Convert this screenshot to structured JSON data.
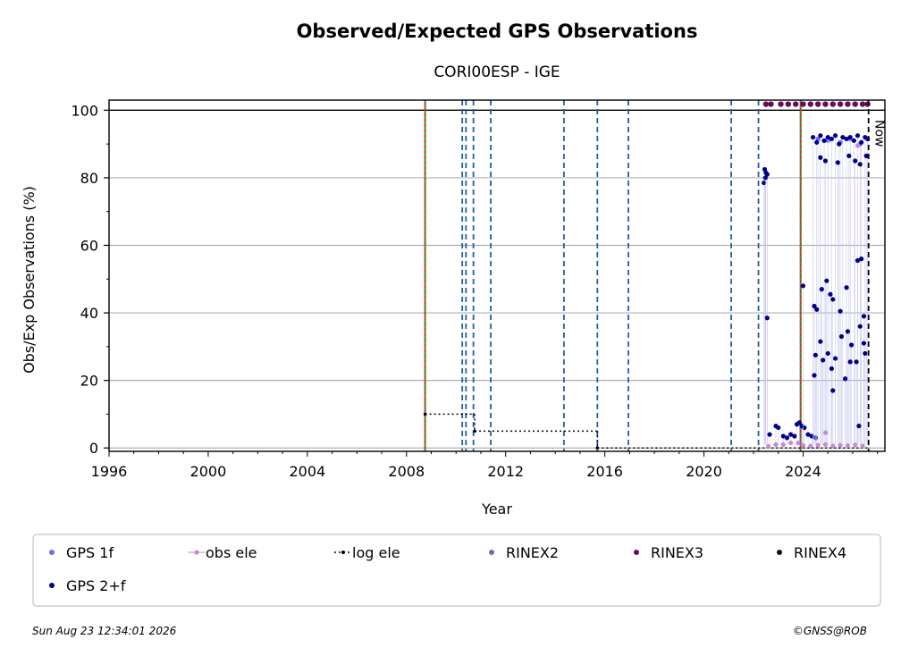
{
  "chart_data": {
    "type": "scatter",
    "title": "Observed/Expected GPS Observations",
    "subtitle": "CORI00ESP - IGE",
    "xlabel": "Year",
    "ylabel": "Obs/Exp Observations (%)",
    "xlim": [
      1996,
      2027.3
    ],
    "ylim": [
      -1,
      103
    ],
    "x_ticks": [
      "1996",
      "2000",
      "2004",
      "2008",
      "2012",
      "2016",
      "2020",
      "2024"
    ],
    "y_ticks": [
      "0",
      "20",
      "40",
      "60",
      "80",
      "100"
    ],
    "grid": "horizontal",
    "reference_line_y": 100,
    "now_label": "Now",
    "now_x": 2026.64,
    "red_green_lines_x": [
      2008.75,
      2023.9
    ],
    "blue_dashed_lines_x": [
      2010.25,
      2010.4,
      2010.7,
      2011.4,
      2014.35,
      2015.7,
      2016.95,
      2021.1,
      2022.2
    ],
    "log_ele_steps": [
      {
        "x0": 2008.75,
        "x1": 2010.75,
        "y": 10
      },
      {
        "x0": 2010.75,
        "x1": 2015.7,
        "y": 5
      },
      {
        "x0": 2015.7,
        "x1": 2026.64,
        "y": 0
      }
    ],
    "series": [
      {
        "name": "GPS 1f",
        "color": "#6b6bff",
        "points": [
          [
            2024.6,
            91.5
          ],
          [
            2025.0,
            91.0
          ],
          [
            2025.5,
            90.5
          ],
          [
            2025.9,
            91.5
          ],
          [
            2026.3,
            90.0
          ]
        ]
      },
      {
        "name": "GPS 2+f",
        "color": "#00008b",
        "points": [
          [
            2022.45,
            82.5
          ],
          [
            2022.5,
            81.5
          ],
          [
            2022.55,
            81.0
          ],
          [
            2022.42,
            78.5
          ],
          [
            2022.48,
            80.0
          ],
          [
            2022.55,
            38.5
          ],
          [
            2022.65,
            4.0
          ],
          [
            2022.9,
            6.5
          ],
          [
            2023.0,
            6.0
          ],
          [
            2023.2,
            3.5
          ],
          [
            2023.35,
            3.0
          ],
          [
            2023.5,
            4.0
          ],
          [
            2023.65,
            3.5
          ],
          [
            2023.75,
            7.0
          ],
          [
            2023.85,
            7.5
          ],
          [
            2023.95,
            6.5
          ],
          [
            2024.05,
            6.0
          ],
          [
            2024.0,
            48.0
          ],
          [
            2024.2,
            4.0
          ],
          [
            2024.35,
            3.5
          ],
          [
            2024.5,
            3.0
          ],
          [
            2024.4,
            92.0
          ],
          [
            2024.55,
            90.5
          ],
          [
            2024.7,
            92.5
          ],
          [
            2024.85,
            91.0
          ],
          [
            2025.0,
            92.0
          ],
          [
            2025.15,
            91.5
          ],
          [
            2025.3,
            92.5
          ],
          [
            2025.45,
            90.0
          ],
          [
            2025.6,
            92.0
          ],
          [
            2025.75,
            91.5
          ],
          [
            2025.9,
            92.0
          ],
          [
            2026.05,
            91.0
          ],
          [
            2026.2,
            92.5
          ],
          [
            2026.35,
            90.5
          ],
          [
            2026.5,
            92.0
          ],
          [
            2026.6,
            91.5
          ],
          [
            2024.7,
            86.0
          ],
          [
            2024.9,
            85.0
          ],
          [
            2025.4,
            84.5
          ],
          [
            2025.85,
            86.5
          ],
          [
            2026.1,
            85.0
          ],
          [
            2026.3,
            84.0
          ],
          [
            2026.55,
            86.5
          ],
          [
            2024.45,
            42.0
          ],
          [
            2024.75,
            47.0
          ],
          [
            2024.95,
            49.5
          ],
          [
            2025.2,
            44.0
          ],
          [
            2025.5,
            40.5
          ],
          [
            2025.75,
            47.5
          ],
          [
            2026.2,
            55.5
          ],
          [
            2026.35,
            56.0
          ],
          [
            2024.55,
            41.0
          ],
          [
            2025.1,
            45.5
          ],
          [
            2026.45,
            39.0
          ],
          [
            2024.5,
            27.5
          ],
          [
            2024.7,
            31.5
          ],
          [
            2024.8,
            26.0
          ],
          [
            2025.0,
            28.0
          ],
          [
            2025.15,
            23.5
          ],
          [
            2025.3,
            26.5
          ],
          [
            2025.55,
            33.0
          ],
          [
            2025.8,
            34.5
          ],
          [
            2025.95,
            30.5
          ],
          [
            2026.15,
            25.5
          ],
          [
            2026.3,
            36.0
          ],
          [
            2026.45,
            31.0
          ],
          [
            2026.5,
            28.0
          ],
          [
            2024.45,
            21.5
          ],
          [
            2025.2,
            17.0
          ],
          [
            2025.7,
            20.5
          ],
          [
            2025.9,
            25.5
          ],
          [
            2026.25,
            6.5
          ]
        ]
      },
      {
        "name": "obs ele",
        "color": "#c48ad8",
        "points": [
          [
            2022.6,
            0.5
          ],
          [
            2022.9,
            1.0
          ],
          [
            2023.2,
            1.0
          ],
          [
            2023.5,
            1.5
          ],
          [
            2023.8,
            1.5
          ],
          [
            2024.0,
            0.8
          ],
          [
            2024.3,
            0.6
          ],
          [
            2024.6,
            0.8
          ],
          [
            2024.9,
            1.0
          ],
          [
            2025.2,
            0.6
          ],
          [
            2025.5,
            0.8
          ],
          [
            2025.8,
            0.7
          ],
          [
            2026.1,
            0.9
          ],
          [
            2026.4,
            0.6
          ],
          [
            2024.9,
            4.5
          ],
          [
            2026.2,
            89.5
          ]
        ]
      },
      {
        "name": "log ele",
        "color": "#000000",
        "points": []
      },
      {
        "name": "RINEX2",
        "color": "#7b68b5",
        "points": []
      },
      {
        "name": "RINEX3",
        "color": "#6a0a5a",
        "points": [
          [
            2022.5,
            101.8
          ],
          [
            2022.7,
            101.8
          ],
          [
            2023.1,
            101.8
          ],
          [
            2023.4,
            101.8
          ],
          [
            2023.7,
            101.8
          ],
          [
            2024.0,
            101.8
          ],
          [
            2024.3,
            101.8
          ],
          [
            2024.6,
            101.8
          ],
          [
            2024.9,
            101.8
          ],
          [
            2025.2,
            101.8
          ],
          [
            2025.5,
            101.8
          ],
          [
            2025.8,
            101.8
          ],
          [
            2026.1,
            101.8
          ],
          [
            2026.4,
            101.8
          ],
          [
            2026.6,
            101.8
          ]
        ]
      },
      {
        "name": "RINEX4",
        "color": "#1a0820",
        "points": []
      }
    ],
    "legend_placement": "below"
  },
  "footer": {
    "timestamp": "Sun Aug 23 12:34:01 2026",
    "credit": "©GNSS@ROB"
  },
  "colors": {
    "red_line": "#d62728",
    "green_dotted": "#2ca02c",
    "blue_dashed": "#1f5fa8",
    "grid": "#b0b0b0"
  }
}
